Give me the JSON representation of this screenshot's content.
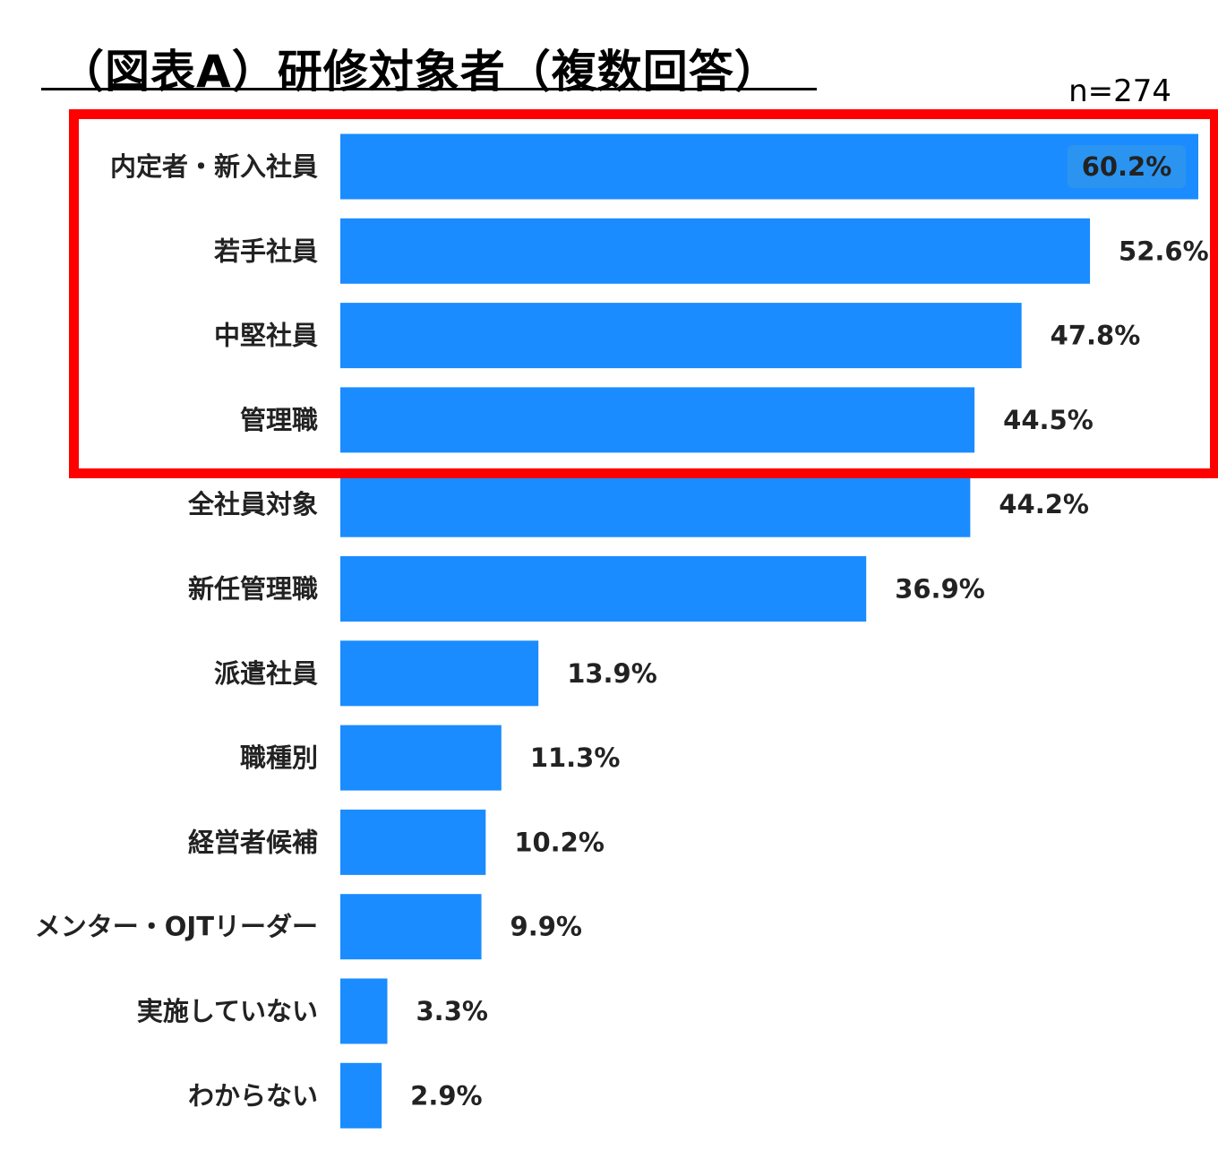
{
  "title": "（図表A）研修対象者（複数回答）",
  "sample_size": "n=274",
  "colors": {
    "bar": "#1a8cff",
    "highlight": "#ff0000",
    "top_label_bg": "#2b94f0"
  },
  "chart_data": {
    "type": "bar",
    "orientation": "horizontal",
    "categories": [
      "内定者・新入社員",
      "若手社員",
      "中堅社員",
      "管理職",
      "全社員対象",
      "新任管理職",
      "派遣社員",
      "職種別",
      "経営者候補",
      "メンター・OJTリーダー",
      "実施していない",
      "わからない"
    ],
    "values": [
      60.2,
      52.6,
      47.8,
      44.5,
      44.2,
      36.9,
      13.9,
      11.3,
      10.2,
      9.9,
      3.3,
      2.9
    ],
    "value_labels": [
      "60.2%",
      "52.6%",
      "47.8%",
      "44.5%",
      "44.2%",
      "36.9%",
      "13.9%",
      "11.3%",
      "10.2%",
      "9.9%",
      "3.3%",
      "2.9%"
    ],
    "unit": "%",
    "grid": false,
    "legend": "none",
    "highlighted_categories": [
      "内定者・新入社員",
      "若手社員",
      "中堅社員",
      "管理職"
    ]
  }
}
